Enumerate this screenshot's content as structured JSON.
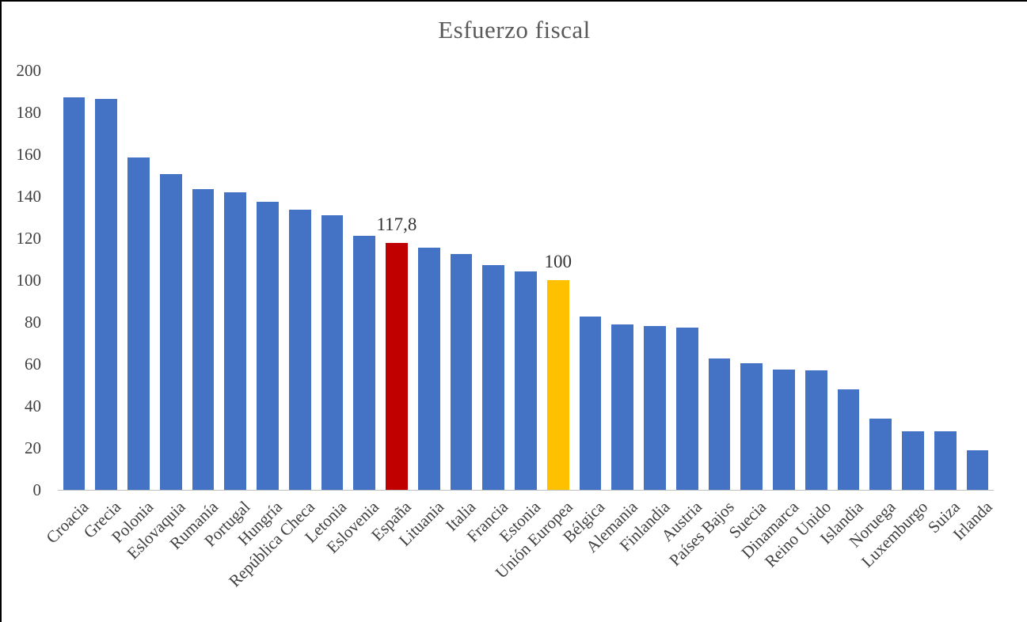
{
  "chart_data": {
    "type": "bar",
    "title": "Esfuerzo fiscal",
    "categories": [
      "Croacia",
      "Grecia",
      "Polonia",
      "Eslovaquia",
      "Rumanía",
      "Portugal",
      "Hungría",
      "República Checa",
      "Letonia",
      "Eslovenia",
      "España",
      "Lituania",
      "Italia",
      "Francia",
      "Estonia",
      "Unión Europea",
      "Bélgica",
      "Alemania",
      "Finlandia",
      "Austria",
      "Países Bajos",
      "Suecia",
      "Dinamarca",
      "Reino Unido",
      "Islandia",
      "Noruega",
      "Luxemburgo",
      "Suiza",
      "Irlanda"
    ],
    "values": [
      187,
      186.5,
      158.5,
      150.5,
      143.5,
      142,
      137.5,
      133.5,
      131,
      121,
      117.8,
      115.5,
      112.5,
      107,
      104,
      100,
      82.5,
      79,
      78,
      77.5,
      62.5,
      60.5,
      57.5,
      57,
      48,
      34,
      28,
      28,
      19
    ],
    "bar_color": "#4472C4",
    "highlight": [
      {
        "category": "España",
        "color": "#C00000",
        "label": "117,8"
      },
      {
        "category": "Unión Europea",
        "color": "#FFC000",
        "label": "100"
      }
    ],
    "ylim": [
      0,
      200
    ],
    "yticks": [
      0,
      20,
      40,
      60,
      80,
      100,
      120,
      140,
      160,
      180,
      200
    ],
    "grid": false,
    "legend": false,
    "xlabel": "",
    "ylabel": "",
    "title_color": "#595959",
    "axis_text_color": "#404040",
    "data_label_color": "#333333",
    "axis_line_color": "#bfbfbf"
  }
}
